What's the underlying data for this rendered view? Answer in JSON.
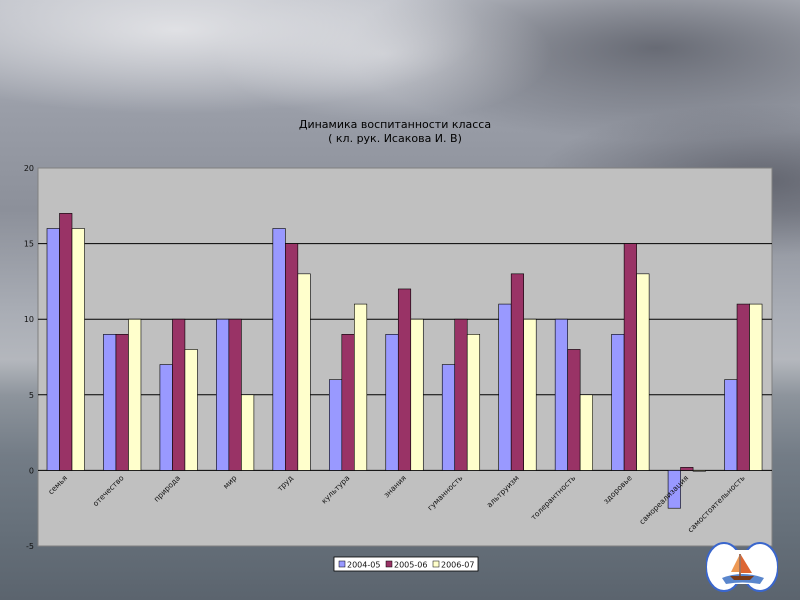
{
  "chart_data": {
    "type": "bar",
    "title": "Динамика воспитанности класса",
    "subtitle": "( кл. рук. Исакова И. В)",
    "xlabel": "",
    "ylabel": "",
    "ylim": [
      -5,
      20
    ],
    "yticks": [
      -5,
      0,
      5,
      10,
      15,
      20
    ],
    "grid": true,
    "legend_position": "bottom",
    "categories": [
      "семья",
      "отечество",
      "природа",
      "мир",
      "труд",
      "культура",
      "знания",
      "гуманность",
      "альтруизм",
      "толерантность",
      "здоровье",
      "самореализация",
      "самостоятельность"
    ],
    "series": [
      {
        "name": "2004-05",
        "color": "#9999ff",
        "values": [
          16,
          9,
          7,
          10,
          16,
          6,
          9,
          7,
          11,
          10,
          9,
          -2.5,
          6
        ]
      },
      {
        "name": "2005-06",
        "color": "#993366",
        "values": [
          17,
          9,
          10,
          10,
          15,
          9,
          12,
          10,
          13,
          8,
          15,
          0.2,
          11
        ]
      },
      {
        "name": "2006-07",
        "color": "#ffffcc",
        "values": [
          16,
          10,
          8,
          5,
          13,
          11,
          10,
          9,
          10,
          5,
          13,
          0,
          11
        ]
      }
    ]
  }
}
